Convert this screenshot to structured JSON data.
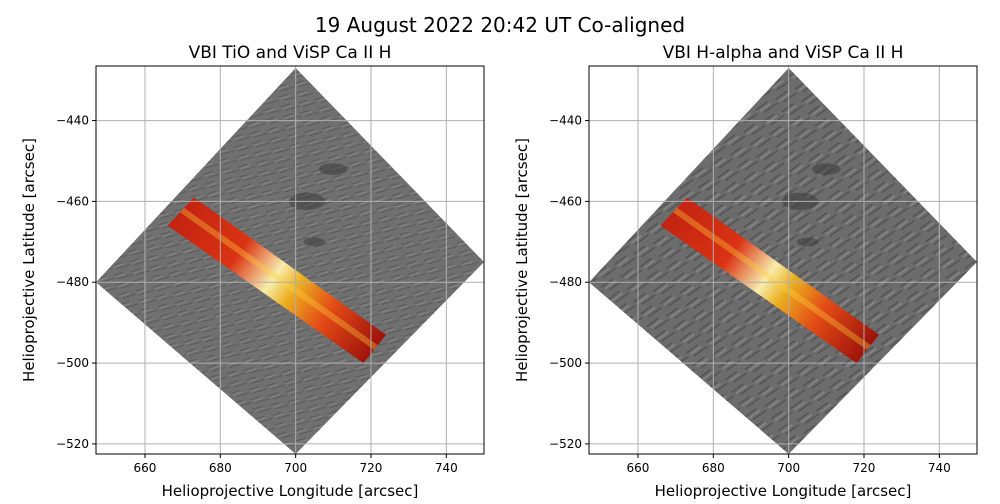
{
  "figure": {
    "title": "19 August 2022 20:42 UT Co-aligned"
  },
  "colors": {
    "grid": "#b0b0b0",
    "overlay_low": "#8b0000",
    "overlay_mid": "#ff4500",
    "overlay_high": "#ffff66",
    "background_gray": "#6e6e6e"
  },
  "chart_data": [
    {
      "type": "heatmap",
      "title": "VBI TiO and ViSP Ca II H",
      "xlabel": "Helioprojective Longitude [arcsec]",
      "ylabel": "Helioprojective Latitude [arcsec]",
      "xlim": [
        647,
        750
      ],
      "ylim": [
        -522.5,
        -426.5
      ],
      "xticks": [
        660,
        680,
        700,
        720,
        740
      ],
      "yticks": [
        -440,
        -460,
        -480,
        -500,
        -520
      ],
      "grid": true,
      "background_image": "VBI TiO (grayscale, rotated square)",
      "background_corners": [
        [
          700,
          -427
        ],
        [
          750,
          -475
        ],
        [
          700,
          -522.5
        ],
        [
          647,
          -480
        ]
      ],
      "overlay": "ViSP Ca II H (hot colormap strip)",
      "overlay_corners": [
        [
          673,
          -459
        ],
        [
          724,
          -493
        ],
        [
          718,
          -500
        ],
        [
          666,
          -466
        ]
      ]
    },
    {
      "type": "heatmap",
      "title": "VBI H-alpha and ViSP Ca II H",
      "xlabel": "Helioprojective Longitude [arcsec]",
      "ylabel": "Helioprojective Latitude [arcsec]",
      "xlim": [
        647,
        750
      ],
      "ylim": [
        -522.5,
        -426.5
      ],
      "xticks": [
        660,
        680,
        700,
        720,
        740
      ],
      "yticks": [
        -440,
        -460,
        -480,
        -500,
        -520
      ],
      "grid": true,
      "background_image": "VBI H-alpha (grayscale, rotated square)",
      "background_corners": [
        [
          700,
          -427
        ],
        [
          750,
          -475
        ],
        [
          700,
          -522.5
        ],
        [
          647,
          -480
        ]
      ],
      "overlay": "ViSP Ca II H (hot colormap strip)",
      "overlay_corners": [
        [
          673,
          -459
        ],
        [
          724,
          -493
        ],
        [
          718,
          -500
        ],
        [
          666,
          -466
        ]
      ]
    }
  ]
}
